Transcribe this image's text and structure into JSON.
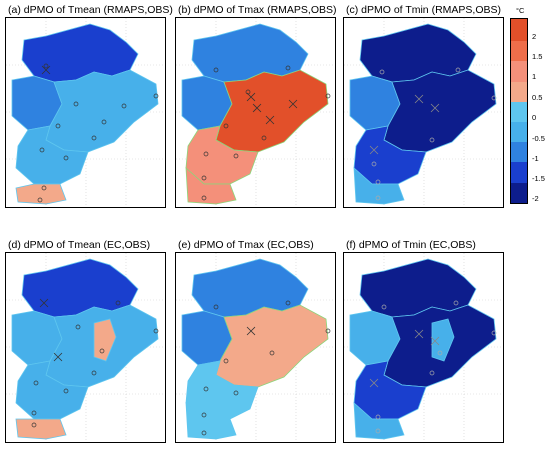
{
  "panels": [
    {
      "title": "(a) dPMO of Tmean (RMAPS,OBS)"
    },
    {
      "title": "(b) dPMO of Tmax (RMAPS,OBS)"
    },
    {
      "title": "(c) dPMO of Tmin (RMAPS,OBS)"
    },
    {
      "title": "(d) dPMO of Tmean (EC,OBS)"
    },
    {
      "title": "(e) dPMO of Tmax (EC,OBS)"
    },
    {
      "title": "(f) dPMO of Tmin (EC,OBS)"
    }
  ],
  "colorbar": {
    "unit": "°C",
    "ticks": [
      "2",
      "1.5",
      "1",
      "0.5",
      "0",
      "-0.5",
      "-1",
      "-1.5",
      "-2"
    ],
    "colors": [
      "#e2502a",
      "#ef6e4a",
      "#f4907a",
      "#f3a98a",
      "#5ec6ef",
      "#47b0ea",
      "#2f82e0",
      "#1a3fce",
      "#0d1d8c"
    ]
  }
}
